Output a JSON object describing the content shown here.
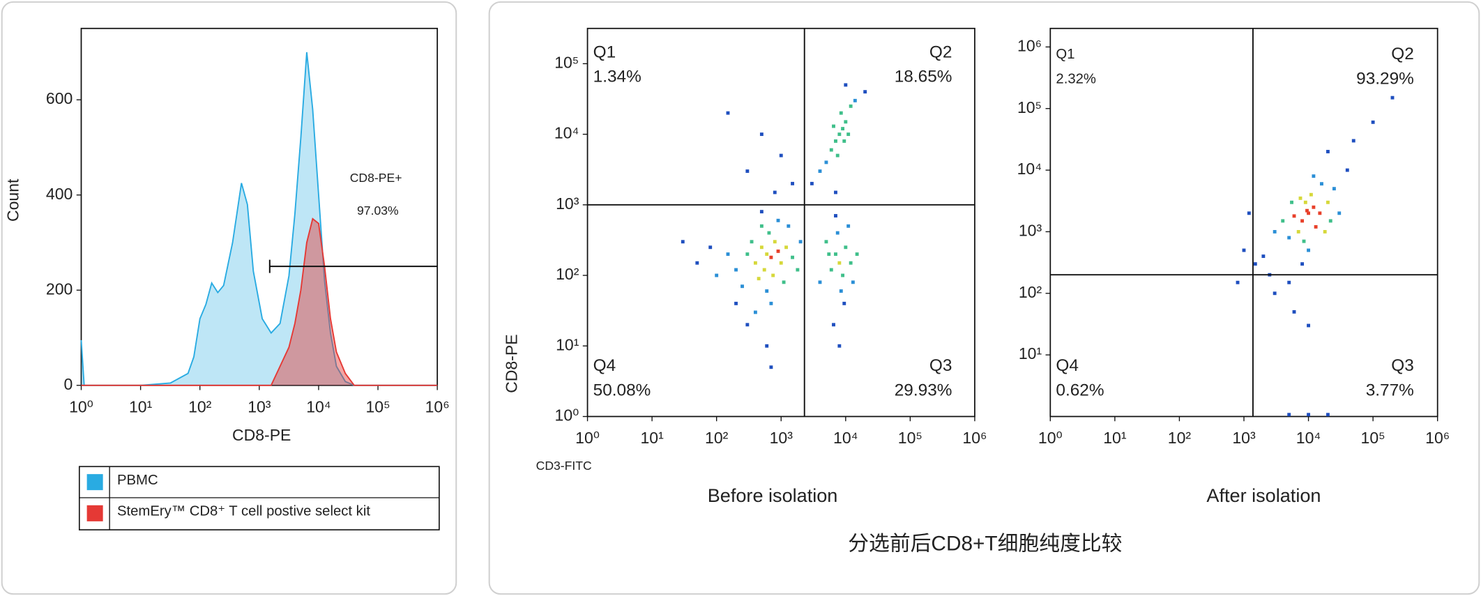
{
  "chart_data": [
    {
      "type": "area",
      "x_label": "CD8-PE",
      "y_label": "Count",
      "log_x": true,
      "x": [
        1,
        1.12,
        10,
        32,
        63,
        79,
        100,
        126,
        158,
        200,
        251,
        355,
        501,
        631,
        794,
        1122,
        1585,
        2239,
        3162,
        3981,
        5012,
        6310,
        7943,
        10000,
        12589,
        15849,
        19953,
        28184,
        39811,
        1000000
      ],
      "series": [
        {
          "name": "PBMC",
          "color": "#29abe2",
          "values": [
            95,
            0,
            0,
            5,
            25,
            60,
            140,
            170,
            215,
            195,
            210,
            300,
            425,
            380,
            240,
            140,
            110,
            130,
            230,
            360,
            520,
            700,
            580,
            400,
            220,
            110,
            40,
            8,
            0,
            0
          ]
        },
        {
          "name": "StemEry™ CD8⁺ T cell postive select kit",
          "color": "#e53935",
          "values": [
            0,
            0,
            0,
            0,
            0,
            0,
            0,
            0,
            0,
            0,
            0,
            0,
            0,
            0,
            0,
            0,
            0,
            40,
            80,
            130,
            200,
            300,
            350,
            340,
            250,
            140,
            70,
            25,
            0,
            0
          ]
        }
      ],
      "xlim": [
        1,
        1000000
      ],
      "ylim": [
        0,
        750
      ],
      "xticks": [
        {
          "value": 1,
          "label": "10⁰"
        },
        {
          "value": 10,
          "label": "10¹"
        },
        {
          "value": 100,
          "label": "10²"
        },
        {
          "value": 1000,
          "label": "10³"
        },
        {
          "value": 10000,
          "label": "10⁴"
        },
        {
          "value": 100000,
          "label": "10⁵"
        },
        {
          "value": 1000000,
          "label": "10⁶"
        }
      ],
      "yticks": [
        0,
        200,
        400,
        600
      ],
      "gate": {
        "label": "CD8-PE+",
        "percent": "97.03%",
        "x": [
          1500,
          1000000
        ],
        "y": 250
      }
    },
    {
      "type": "scatter",
      "title": "Before isolation",
      "x_label": "CD3-FITC",
      "y_label": "CD8-PE",
      "log_x": true,
      "log_y": true,
      "x": [
        600,
        500,
        700,
        400,
        800,
        550,
        300,
        900,
        650,
        450,
        1000,
        350,
        750,
        200,
        1200,
        600,
        500,
        250,
        150,
        1500,
        700,
        400,
        1100,
        100,
        80,
        2000,
        900,
        300,
        600,
        1300,
        50,
        30,
        200,
        1800,
        700,
        500,
        8000,
        7000,
        9000,
        6000,
        10000,
        8500,
        5000,
        12000,
        7500,
        9500,
        6500,
        11000,
        4000,
        15000,
        8000,
        7000,
        13000,
        5500,
        8000,
        9000,
        7000,
        10000,
        6000,
        8500,
        11000,
        7500,
        12000,
        5000,
        9500,
        6500,
        14000,
        4000,
        10000,
        20000,
        3000,
        7000,
        300,
        500,
        1000,
        150,
        1500,
        800
      ],
      "values": [
        200,
        250,
        180,
        150,
        300,
        120,
        200,
        220,
        400,
        90,
        150,
        300,
        100,
        120,
        250,
        60,
        500,
        70,
        200,
        180,
        40,
        30,
        80,
        100,
        250,
        300,
        600,
        20,
        10,
        500,
        150,
        300,
        40,
        120,
        5,
        800,
        150,
        200,
        100,
        120,
        250,
        60,
        300,
        150,
        400,
        40,
        20,
        500,
        80,
        200,
        10,
        700,
        80,
        200,
        10000,
        12000,
        8000,
        15000,
        6000,
        20000,
        10000,
        5000,
        25000,
        4000,
        8000,
        13000,
        30000,
        3000,
        50000,
        40000,
        2000,
        1500,
        3000,
        10000,
        5000,
        20000,
        2000,
        1500
      ],
      "xlim": [
        1,
        1000000
      ],
      "ylim": [
        1,
        316228
      ],
      "xticks": [
        {
          "value": 1,
          "label": "10⁰"
        },
        {
          "value": 10,
          "label": "10¹"
        },
        {
          "value": 100,
          "label": "10²"
        },
        {
          "value": 1000,
          "label": "10³"
        },
        {
          "value": 10000,
          "label": "10⁴"
        },
        {
          "value": 100000,
          "label": "10⁵"
        },
        {
          "value": 1000000,
          "label": "10⁶"
        }
      ],
      "yticks": [
        {
          "value": 1,
          "label": "10⁰"
        },
        {
          "value": 10,
          "label": "10¹"
        },
        {
          "value": 100,
          "label": "10²"
        },
        {
          "value": 1000,
          "label": "10³"
        },
        {
          "value": 10000,
          "label": "10⁴"
        },
        {
          "value": 100000,
          "label": "10⁵"
        }
      ],
      "quadrant_x": 2300,
      "quadrant_y": 1000,
      "quadrants": [
        {
          "name": "Q1",
          "percent": "1.34%"
        },
        {
          "name": "Q2",
          "percent": "18.65%"
        },
        {
          "name": "Q3",
          "percent": "29.93%"
        },
        {
          "name": "Q4",
          "percent": "50.08%"
        }
      ]
    },
    {
      "type": "scatter",
      "title": "After isolation",
      "log_x": true,
      "log_y": true,
      "x": [
        10000,
        8000,
        12000,
        9000,
        15000,
        7000,
        11000,
        6000,
        20000,
        13000,
        9500,
        5000,
        25000,
        4000,
        16000,
        8500,
        30000,
        3000,
        7500,
        10000,
        18000,
        5500,
        12000,
        22000,
        2000,
        1500,
        1000,
        2500,
        800,
        3000,
        5000,
        8000,
        20000,
        40000,
        50000,
        100000,
        200000,
        6000,
        10000,
        1200,
        5000,
        10000,
        20000
      ],
      "values": [
        2000,
        1500,
        2500,
        3000,
        2000,
        1000,
        4000,
        1800,
        3000,
        1200,
        2200,
        800,
        5000,
        1500,
        6000,
        700,
        2000,
        1000,
        3500,
        500,
        1000,
        3000,
        8000,
        1500,
        400,
        300,
        500,
        200,
        150,
        100,
        150,
        300,
        20000,
        10000,
        30000,
        60000,
        150000,
        50,
        30,
        2000,
        1,
        1,
        1
      ],
      "xlim": [
        1,
        1000000
      ],
      "ylim": [
        1,
        2000000
      ],
      "xticks": [
        {
          "value": 1,
          "label": "10⁰"
        },
        {
          "value": 10,
          "label": "10¹"
        },
        {
          "value": 100,
          "label": "10²"
        },
        {
          "value": 1000,
          "label": "10³"
        },
        {
          "value": 10000,
          "label": "10⁴"
        },
        {
          "value": 100000,
          "label": "10⁵"
        },
        {
          "value": 1000000,
          "label": "10⁶"
        }
      ],
      "yticks": [
        {
          "value": 10,
          "label": "10¹"
        },
        {
          "value": 100,
          "label": "10²"
        },
        {
          "value": 1000,
          "label": "10³"
        },
        {
          "value": 10000,
          "label": "10⁴"
        },
        {
          "value": 100000,
          "label": "10⁵"
        },
        {
          "value": 1000000,
          "label": "10⁶"
        }
      ],
      "quadrant_x": 1380,
      "quadrant_y": 200,
      "quadrants": [
        {
          "name": "Q1",
          "percent": "2.32%"
        },
        {
          "name": "Q2",
          "percent": "93.29%"
        },
        {
          "name": "Q3",
          "percent": "3.77%"
        },
        {
          "name": "Q4",
          "percent": "0.62%"
        }
      ]
    }
  ],
  "caption": "分选前后CD8+T细胞纯度比较"
}
